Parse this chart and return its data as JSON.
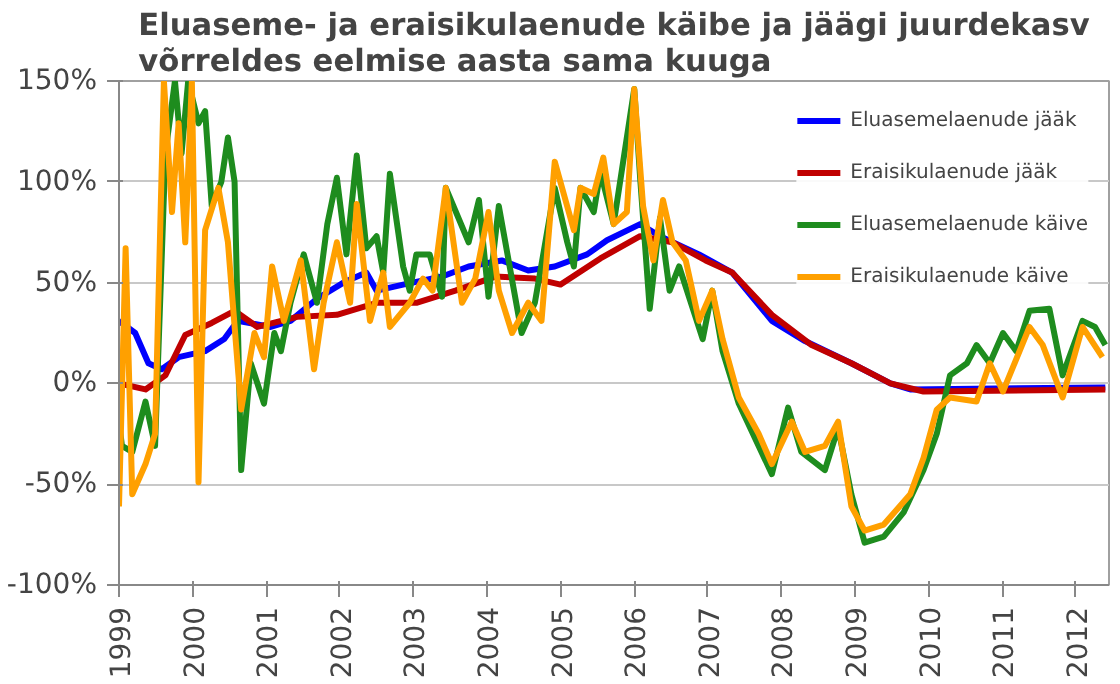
{
  "chart_data": {
    "type": "line",
    "title": "Eluaseme- ja eraisikulaenude käibe ja jäägi juurdekasv\nvõrreldes eelmise aasta sama kuuga",
    "xlim": [
      1999,
      2012.45
    ],
    "xticks": [
      1999,
      2000,
      2001,
      2002,
      2003,
      2004,
      2005,
      2006,
      2007,
      2008,
      2009,
      2010,
      2011,
      2012
    ],
    "ylim": [
      -100,
      150
    ],
    "yticks": [
      {
        "value": -100,
        "label": "-100%"
      },
      {
        "value": -50,
        "label": "-50%"
      },
      {
        "value": 0,
        "label": "0%"
      },
      {
        "value": 50,
        "label": "50%"
      },
      {
        "value": 100,
        "label": "100%"
      },
      {
        "value": 150,
        "label": "150%"
      }
    ],
    "grid": "y",
    "legend": "top right",
    "line_style": "solid",
    "marker": "none",
    "series": [
      {
        "name": "Eluasemelaenude jääk",
        "color": "#0000ff",
        "x": [
          1999.0,
          1999.22,
          1999.4,
          1999.58,
          1999.81,
          2000.17,
          2000.43,
          2000.61,
          2001.06,
          2001.33,
          2001.69,
          2002.05,
          2002.36,
          2002.5,
          2002.86,
          2003.39,
          2003.75,
          2004.2,
          2004.56,
          2004.92,
          2005.36,
          2005.63,
          2006.08,
          2006.35,
          2006.88,
          2007.33,
          2007.87,
          2008.32,
          2008.95,
          2009.48,
          2009.75,
          2012.4
        ],
        "values": [
          31,
          25,
          10,
          7,
          13,
          16,
          22,
          31,
          28,
          31,
          42,
          50,
          55,
          46,
          49,
          53,
          58,
          61,
          56,
          58,
          64,
          71,
          79,
          73,
          64,
          55,
          31,
          21,
          10,
          0,
          -3,
          -2
        ]
      },
      {
        "name": "Eraisikulaenude jääk",
        "color": "#c00000",
        "x": [
          1999.0,
          1999.36,
          1999.63,
          1999.9,
          2000.26,
          2000.57,
          2000.88,
          2001.42,
          2001.96,
          2002.5,
          2003.04,
          2003.57,
          2004.11,
          2004.65,
          2005.0,
          2005.54,
          2006.08,
          2006.52,
          2006.97,
          2007.33,
          2007.87,
          2008.41,
          2008.95,
          2009.48,
          2009.93,
          2012.4
        ],
        "values": [
          0,
          -3,
          4,
          24,
          30,
          36,
          28,
          33,
          34,
          40,
          40,
          46,
          53,
          52,
          49,
          62,
          73,
          70,
          61,
          55,
          34,
          19,
          10,
          0,
          -4,
          -3
        ]
      },
      {
        "name": "Eluasemelaenude käive",
        "color": "#1e8c1e",
        "x": [
          1999.0,
          1999.04,
          1999.18,
          1999.36,
          1999.49,
          1999.63,
          1999.76,
          1999.85,
          1999.94,
          2000.08,
          2000.17,
          2000.26,
          2000.39,
          2000.48,
          2000.57,
          2000.66,
          2000.79,
          2000.97,
          2001.11,
          2001.2,
          2001.33,
          2001.51,
          2001.69,
          2001.83,
          2001.96,
          2002.09,
          2002.23,
          2002.36,
          2002.5,
          2002.59,
          2002.68,
          2002.86,
          2002.95,
          2003.04,
          2003.22,
          2003.39,
          2003.44,
          2003.75,
          2003.89,
          2004.02,
          2004.16,
          2004.47,
          2004.65,
          2004.92,
          2005.09,
          2005.18,
          2005.27,
          2005.45,
          2005.54,
          2005.72,
          2006.0,
          2006.08,
          2006.21,
          2006.35,
          2006.48,
          2006.61,
          2006.93,
          2007.06,
          2007.2,
          2007.42,
          2007.69,
          2007.87,
          2008.09,
          2008.27,
          2008.59,
          2008.77,
          2008.95,
          2009.13,
          2009.39,
          2009.66,
          2009.93,
          2010.11,
          2010.29,
          2010.52,
          2010.65,
          2010.83,
          2011.01,
          2011.19,
          2011.37,
          2011.64,
          2011.82,
          2012.09,
          2012.26,
          2012.4
        ],
        "values": [
          -19,
          -31,
          -34,
          -9,
          -31,
          114,
          150,
          114,
          150,
          129,
          135,
          88,
          100,
          122,
          100,
          -43,
          10,
          -10,
          25,
          16,
          40,
          64,
          40,
          79,
          102,
          64,
          113,
          67,
          73,
          55,
          104,
          58,
          46,
          64,
          64,
          43,
          97,
          70,
          91,
          43,
          88,
          25,
          40,
          97,
          70,
          58,
          97,
          85,
          105,
          79,
          146,
          102,
          37,
          82,
          46,
          58,
          22,
          46,
          16,
          -10,
          -31,
          -45,
          -12,
          -34,
          -43,
          -22,
          -55,
          -79,
          -76,
          -64,
          -43,
          -25,
          4,
          10,
          19,
          10,
          25,
          16,
          36,
          37,
          4,
          31,
          28,
          19
        ]
      },
      {
        "name": "Eraisikulaenude käive",
        "color": "#ffa000",
        "x": [
          1999.0,
          1999.09,
          1999.18,
          1999.36,
          1999.49,
          1999.61,
          1999.72,
          1999.81,
          1999.9,
          1999.99,
          2000.08,
          2000.17,
          2000.35,
          2000.48,
          2000.66,
          2000.84,
          2000.97,
          2001.08,
          2001.24,
          2001.47,
          2001.65,
          2001.78,
          2001.96,
          2002.14,
          2002.23,
          2002.41,
          2002.59,
          2002.68,
          2002.95,
          2003.13,
          2003.26,
          2003.44,
          2003.66,
          2003.84,
          2004.02,
          2004.16,
          2004.34,
          2004.56,
          2004.74,
          2004.92,
          2005.18,
          2005.27,
          2005.45,
          2005.58,
          2005.72,
          2005.9,
          2006.0,
          2006.12,
          2006.26,
          2006.39,
          2006.52,
          2006.7,
          2006.88,
          2007.06,
          2007.2,
          2007.42,
          2007.69,
          2007.87,
          2008.14,
          2008.32,
          2008.59,
          2008.77,
          2008.95,
          2009.13,
          2009.39,
          2009.75,
          2009.93,
          2010.11,
          2010.29,
          2010.65,
          2010.83,
          2011.01,
          2011.37,
          2011.55,
          2011.82,
          2012.09,
          2012.36
        ],
        "values": [
          -61,
          67,
          -55,
          -40,
          -25,
          150,
          85,
          129,
          70,
          150,
          -49,
          76,
          97,
          70,
          -13,
          25,
          13,
          58,
          31,
          61,
          7,
          40,
          70,
          40,
          89,
          31,
          55,
          28,
          40,
          52,
          46,
          97,
          40,
          52,
          85,
          46,
          25,
          40,
          31,
          110,
          76,
          97,
          94,
          112,
          79,
          85,
          146,
          88,
          61,
          91,
          70,
          61,
          31,
          46,
          22,
          -7,
          -25,
          -40,
          -19,
          -34,
          -31,
          -19,
          -61,
          -73,
          -70,
          -55,
          -37,
          -13,
          -7,
          -9,
          10,
          -4,
          28,
          19,
          -7,
          28,
          13
        ]
      }
    ]
  }
}
